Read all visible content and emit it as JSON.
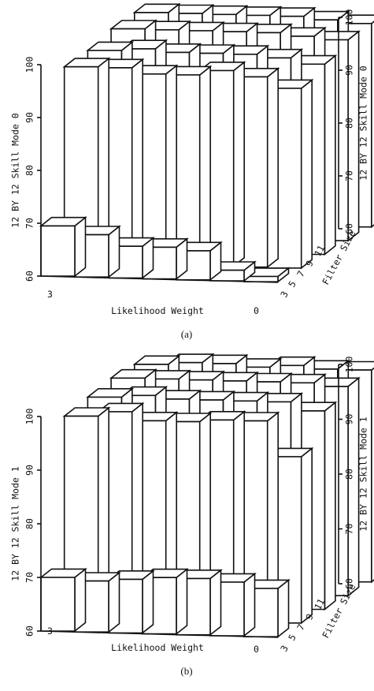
{
  "chart_data": [
    {
      "type": "bar3d",
      "caption": "(a)",
      "zlabel": "12 BY 12 Skill   Mode 0",
      "xlabel": "Likelihood Weight",
      "ylabel": "Filter Size",
      "z_ticks": [
        "60",
        "70",
        "80",
        "90",
        "100"
      ],
      "zlim": [
        60,
        100
      ],
      "x_tick_labels": [
        "3",
        "0"
      ],
      "y_tick_labels": [
        "3",
        "5",
        "7",
        "9",
        "11"
      ],
      "likelihood_weights": 7,
      "filter_sizes": [
        3,
        5,
        7,
        9,
        11
      ],
      "series": [
        {
          "name": "3",
          "values": [
            69.5,
            68,
            66,
            66,
            65.5,
            62,
            61
          ]
        },
        {
          "name": "5",
          "values": [
            97,
            97,
            96,
            96,
            97,
            96,
            94
          ]
        },
        {
          "name": "7",
          "values": [
            97.5,
            98,
            97.5,
            97.5,
            97.5,
            97,
            96
          ]
        },
        {
          "name": "9",
          "values": [
            99,
            99,
            99,
            99,
            99,
            98.5,
            98
          ]
        },
        {
          "name": "11",
          "values": [
            99.5,
            99.5,
            99.5,
            99.5,
            99.5,
            99,
            98.5
          ]
        }
      ]
    },
    {
      "type": "bar3d",
      "caption": "(b)",
      "zlabel": "12 BY 12 Skill   Mode 1",
      "xlabel": "Likelihood Weight",
      "ylabel": "Filter Size",
      "z_ticks": [
        "60",
        "70",
        "80",
        "90",
        "100"
      ],
      "zlim": [
        60,
        100
      ],
      "x_tick_labels": [
        "3",
        "0"
      ],
      "y_tick_labels": [
        "3",
        "5",
        "7",
        "9",
        "11"
      ],
      "likelihood_weights": 7,
      "filter_sizes": [
        3,
        5,
        7,
        9,
        11
      ],
      "series": [
        {
          "name": "3",
          "values": [
            70,
            69.5,
            70,
            70.5,
            70.5,
            70,
            69
          ]
        },
        {
          "name": "5",
          "values": [
            97.5,
            98.5,
            97,
            97,
            97.5,
            97.5,
            91
          ]
        },
        {
          "name": "7",
          "values": [
            98.5,
            99,
            98.5,
            98.5,
            98.5,
            98.5,
            97
          ]
        },
        {
          "name": "9",
          "values": [
            99.5,
            99.5,
            99.5,
            99.5,
            99.5,
            99.5,
            99
          ]
        },
        {
          "name": "11",
          "values": [
            99.5,
            100,
            100,
            99.5,
            100,
            99.5,
            99.5
          ]
        }
      ]
    }
  ]
}
